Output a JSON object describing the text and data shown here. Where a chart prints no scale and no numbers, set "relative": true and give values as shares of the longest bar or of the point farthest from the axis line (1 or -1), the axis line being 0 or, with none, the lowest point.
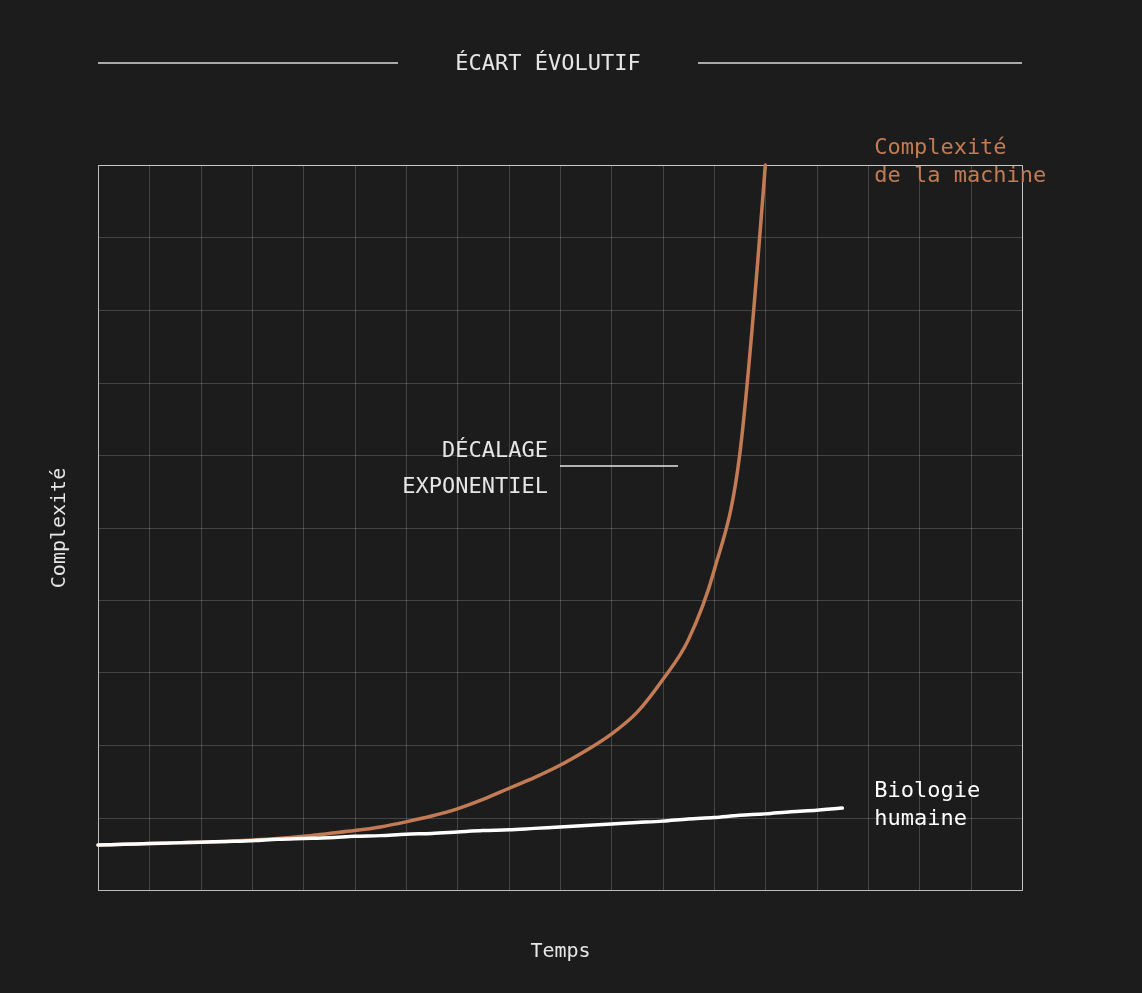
{
  "chart_data": {
    "type": "line",
    "relative": true,
    "xlabel": "Temps",
    "ylabel": "Complexité",
    "grid": true,
    "legend": false,
    "categories": [
      null,
      null,
      null,
      null,
      null,
      null,
      null,
      null,
      null,
      null,
      null,
      null,
      null,
      null,
      null,
      null,
      null,
      null,
      null,
      null,
      null,
      null,
      null,
      null,
      null,
      null,
      null,
      null,
      null,
      null,
      null,
      null,
      null,
      null,
      null,
      null,
      null
    ],
    "series": [
      {
        "name": "Complexité de la machine",
        "color": "#c27b55",
        "values": [
          0.062,
          0.063,
          0.064,
          0.065,
          0.066,
          0.067,
          0.069,
          0.071,
          0.074,
          0.078,
          0.082,
          0.087,
          0.094,
          0.102,
          0.112,
          0.125,
          0.14,
          0.155,
          0.172,
          0.192,
          0.215,
          0.245,
          0.29,
          0.345,
          0.44,
          0.6,
          1.0,
          null,
          null,
          null,
          null,
          null,
          null,
          null,
          null,
          null,
          null
        ]
      },
      {
        "name": "Biologie humaine",
        "color": "#ffffff",
        "values": [
          0.062,
          0.063,
          0.064,
          0.065,
          0.066,
          0.067,
          0.068,
          0.07,
          0.071,
          0.072,
          0.074,
          0.075,
          0.077,
          0.078,
          0.08,
          0.082,
          0.083,
          0.085,
          0.087,
          0.089,
          0.091,
          0.093,
          0.095,
          0.098,
          0.1,
          0.103,
          0.105,
          0.108,
          0.11,
          0.113,
          null,
          null,
          null,
          null,
          null,
          null,
          null
        ]
      }
    ],
    "annotations": [
      "ÉCART ÉVOLUTIF",
      "DÉCALAGE EXPONENTIEL"
    ]
  }
}
